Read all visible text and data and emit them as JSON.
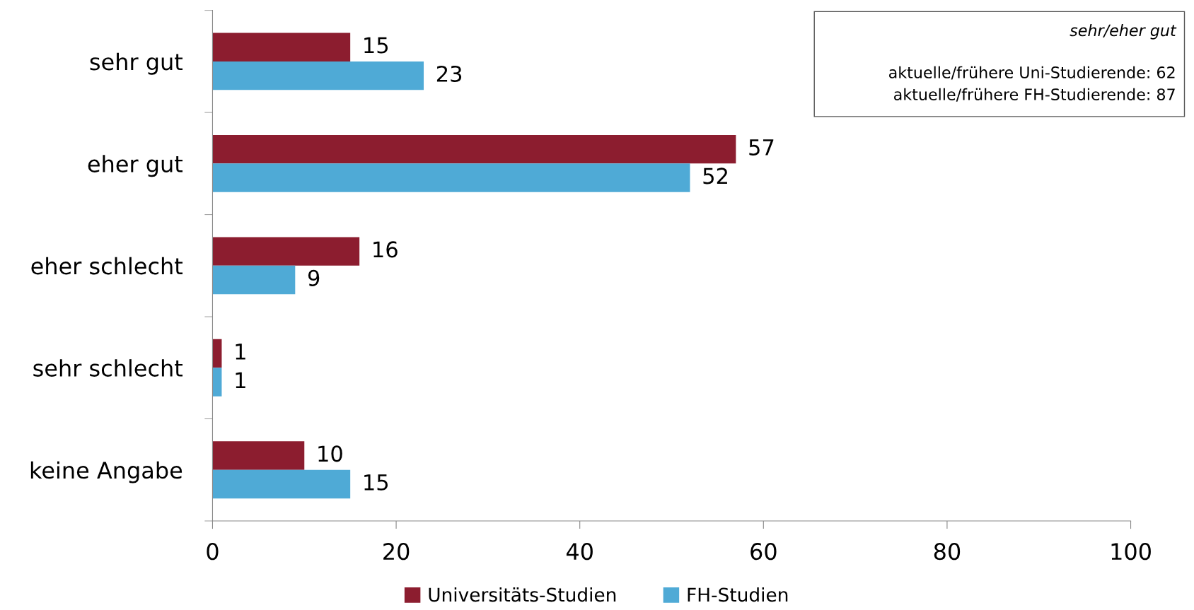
{
  "chart_data": {
    "type": "bar",
    "orientation": "horizontal",
    "categories": [
      "sehr gut",
      "eher gut",
      "eher schlecht",
      "sehr schlecht",
      "keine Angabe"
    ],
    "series": [
      {
        "name": "Universitäts-Studien",
        "color": "#8c1d2f",
        "values": [
          15,
          57,
          16,
          1,
          10
        ]
      },
      {
        "name": "FH-Studien",
        "color": "#4faad6",
        "values": [
          23,
          52,
          9,
          1,
          15
        ]
      }
    ],
    "xlim": [
      0,
      100
    ],
    "xticks": [
      0,
      20,
      40,
      60,
      80,
      100
    ],
    "data_labels": true,
    "grid": false,
    "legend": "bottom",
    "annotations": [
      "sehr/eher gut",
      "aktuelle/frühere Uni-Studierende: 62",
      "aktuelle/frühere FH-Studierende: 87"
    ]
  }
}
